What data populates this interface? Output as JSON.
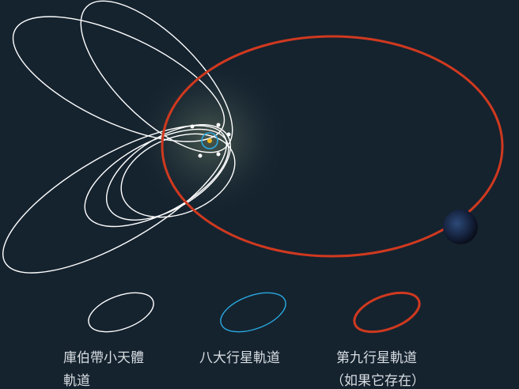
{
  "legend": [
    {
      "label_lines": [
        "庫伯帶小天體",
        "軌道"
      ]
    },
    {
      "label_lines": [
        "八大行星軌道"
      ]
    },
    {
      "label_lines": [
        "第九行星軌道",
        "（如果它存在）"
      ]
    }
  ]
}
